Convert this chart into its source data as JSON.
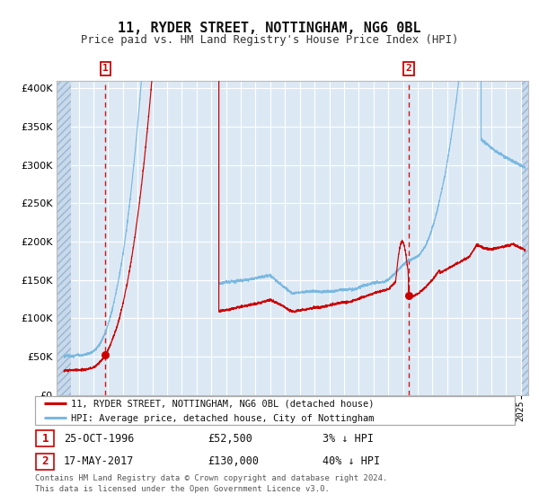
{
  "title": "11, RYDER STREET, NOTTINGHAM, NG6 0BL",
  "subtitle": "Price paid vs. HM Land Registry's House Price Index (HPI)",
  "bg_color": "#dce9f5",
  "hatch_color": "#c5d8ec",
  "grid_color": "#ffffff",
  "red_line_color": "#cc0000",
  "blue_line_color": "#7ab8e0",
  "sale1_date_num": 1996.82,
  "sale1_price": 52500,
  "sale2_date_num": 2017.38,
  "sale2_price": 130000,
  "xmin": 1993.5,
  "xmax": 2025.5,
  "ymin": 0,
  "ymax": 410000,
  "legend_line1": "11, RYDER STREET, NOTTINGHAM, NG6 0BL (detached house)",
  "legend_line2": "HPI: Average price, detached house, City of Nottingham",
  "footer1": "Contains HM Land Registry data © Crown copyright and database right 2024.",
  "footer2": "This data is licensed under the Open Government Licence v3.0."
}
